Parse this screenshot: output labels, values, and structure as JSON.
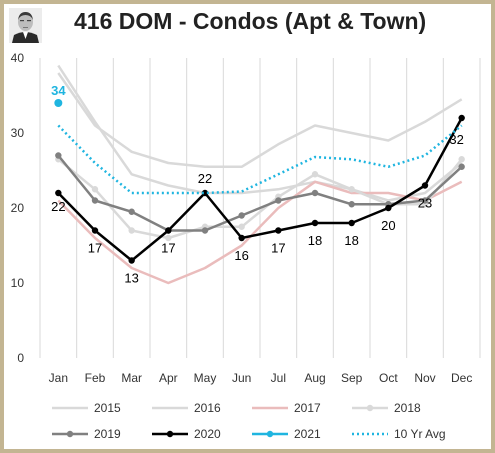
{
  "title": "416 DOM - Condos (Apt & Town)",
  "chart_data": {
    "type": "line",
    "categories": [
      "Jan",
      "Feb",
      "Mar",
      "Apr",
      "May",
      "Jun",
      "Jul",
      "Aug",
      "Sep",
      "Oct",
      "Nov",
      "Dec"
    ],
    "ylim": [
      0,
      40
    ],
    "yticks": [
      0,
      10,
      20,
      30,
      40
    ],
    "grid": "vertical",
    "legend_position": "bottom",
    "series": [
      {
        "name": "2015",
        "color": "#d9d9d9",
        "style": "solid",
        "markers": false,
        "values": [
          39,
          31.5,
          24.5,
          23,
          22,
          22,
          22.5,
          23.5,
          22.5,
          21,
          22,
          26
        ]
      },
      {
        "name": "2016",
        "color": "#d9d9d9",
        "style": "solid",
        "markers": false,
        "values": [
          38,
          31,
          27.5,
          26,
          25.5,
          25.5,
          28.5,
          31,
          30,
          29,
          31.5,
          34.5
        ]
      },
      {
        "name": "2017",
        "color": "#eabcbc",
        "style": "solid",
        "markers": false,
        "values": [
          21,
          16,
          12,
          10,
          12,
          15,
          20,
          23.5,
          22,
          22,
          21,
          23.5
        ]
      },
      {
        "name": "2018",
        "color": "#d9d9d9",
        "style": "solid",
        "markers": true,
        "values": [
          26.5,
          22.5,
          17,
          16,
          17.5,
          17.5,
          21.5,
          24.5,
          22.5,
          20.5,
          20.5,
          26.5
        ]
      },
      {
        "name": "2019",
        "color": "#808080",
        "style": "solid",
        "markers": true,
        "values": [
          27,
          21,
          19.5,
          17,
          17,
          19,
          21,
          22,
          20.5,
          20.5,
          21,
          25.5
        ]
      },
      {
        "name": "2020",
        "color": "#000000",
        "style": "solid",
        "markers": true,
        "values": [
          22,
          17,
          13,
          17,
          22,
          16,
          17,
          18,
          18,
          20,
          23,
          32
        ],
        "data_labels": [
          "22",
          "17",
          "13",
          "17",
          "22",
          "16",
          "17",
          "18",
          "18",
          "20",
          "23",
          "32"
        ]
      },
      {
        "name": "2021",
        "color": "#1fb5e0",
        "style": "solid",
        "markers": true,
        "values": [
          34,
          null,
          null,
          null,
          null,
          null,
          null,
          null,
          null,
          null,
          null,
          null
        ],
        "data_labels": [
          "34"
        ]
      },
      {
        "name": "10 Yr Avg",
        "color": "#1fb5e0",
        "style": "dotted",
        "markers": false,
        "values": [
          31,
          26,
          22,
          22,
          22,
          22.2,
          24.5,
          26.8,
          26.5,
          25.5,
          27,
          31
        ]
      }
    ]
  }
}
